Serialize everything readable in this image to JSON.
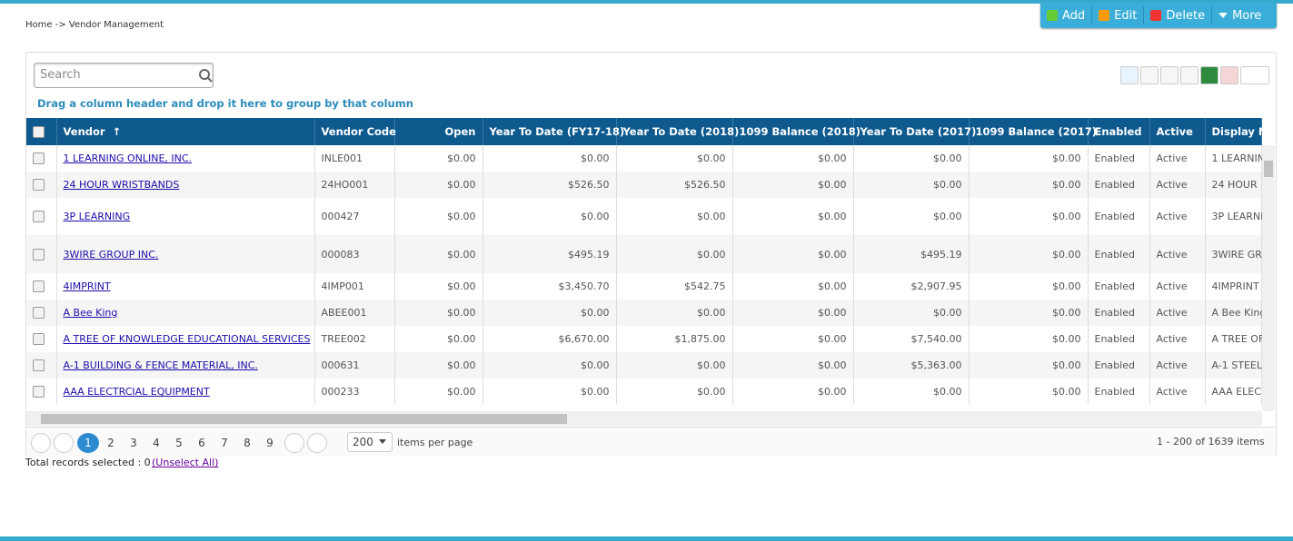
{
  "breadcrumb": "Home -> Vendor Management",
  "toolbar": [
    "Add",
    "Edit",
    "Delete",
    "More"
  ],
  "search": {
    "placeholder": "Search"
  },
  "group_hint": "Drag a column header and drop it here to group by that column",
  "table": {
    "columns": [
      "Vendor",
      "Vendor Code",
      "Open",
      "Year To Date (FY17-18)",
      "Year To Date (2018)",
      "1099 Balance (2018)",
      "Year To Date (2017)",
      "1099 Balance (2017)",
      "Enabled",
      "Active",
      "Display N"
    ],
    "rows": [
      [
        "1 LEARNING ONLINE, INC.",
        "INLE001",
        "$0.00",
        "$0.00",
        "$0.00",
        "$0.00",
        "$0.00",
        "$0.00",
        "Enabled",
        "Active",
        "1 LEARNIN"
      ],
      [
        "24 HOUR WRISTBANDS",
        "24HO001",
        "$0.00",
        "$526.50",
        "$526.50",
        "$0.00",
        "$0.00",
        "$0.00",
        "Enabled",
        "Active",
        "24 HOUR"
      ],
      [
        "3P LEARNING",
        "000427",
        "$0.00",
        "$0.00",
        "$0.00",
        "$0.00",
        "$0.00",
        "$0.00",
        "Enabled",
        "Active",
        "3P LEARNI"
      ],
      [
        "3WIRE GROUP INC.",
        "000083",
        "$0.00",
        "$495.19",
        "$0.00",
        "$0.00",
        "$495.19",
        "$0.00",
        "Enabled",
        "Active",
        "3WIRE GR"
      ],
      [
        "4IMPRINT",
        "4IMP001",
        "$0.00",
        "$3,450.70",
        "$542.75",
        "$0.00",
        "$2,907.95",
        "$0.00",
        "Enabled",
        "Active",
        "4IMPRINT"
      ],
      [
        "A Bee King",
        "ABEE001",
        "$0.00",
        "$0.00",
        "$0.00",
        "$0.00",
        "$0.00",
        "$0.00",
        "Enabled",
        "Active",
        "A Bee King"
      ],
      [
        "A TREE OF KNOWLEDGE EDUCATIONAL SERVICES",
        "TREE002",
        "$0.00",
        "$6,670.00",
        "$1,875.00",
        "$0.00",
        "$7,540.00",
        "$0.00",
        "Enabled",
        "Active",
        "A TREE OF"
      ],
      [
        "A-1 BUILDING & FENCE MATERIAL, INC.",
        "000631",
        "$0.00",
        "$0.00",
        "$0.00",
        "$0.00",
        "$5,363.00",
        "$0.00",
        "Enabled",
        "Active",
        "A-1 STEEL"
      ],
      [
        "AAA ELECTRCIAL EQUIPMENT",
        "000233",
        "$0.00",
        "$0.00",
        "$0.00",
        "$0.00",
        "$0.00",
        "$0.00",
        "Enabled",
        "Active",
        "AAA ELEC"
      ]
    ]
  },
  "pager": {
    "pages": [
      "1",
      "2",
      "3",
      "4",
      "5",
      "6",
      "7",
      "8",
      "9"
    ],
    "page_size": "200",
    "page_size_label": "items per page",
    "summary": "1 - 200 of 1639 items"
  },
  "footer": {
    "selected": "Total records selected : 0",
    "unselect": "(Unselect All)"
  }
}
